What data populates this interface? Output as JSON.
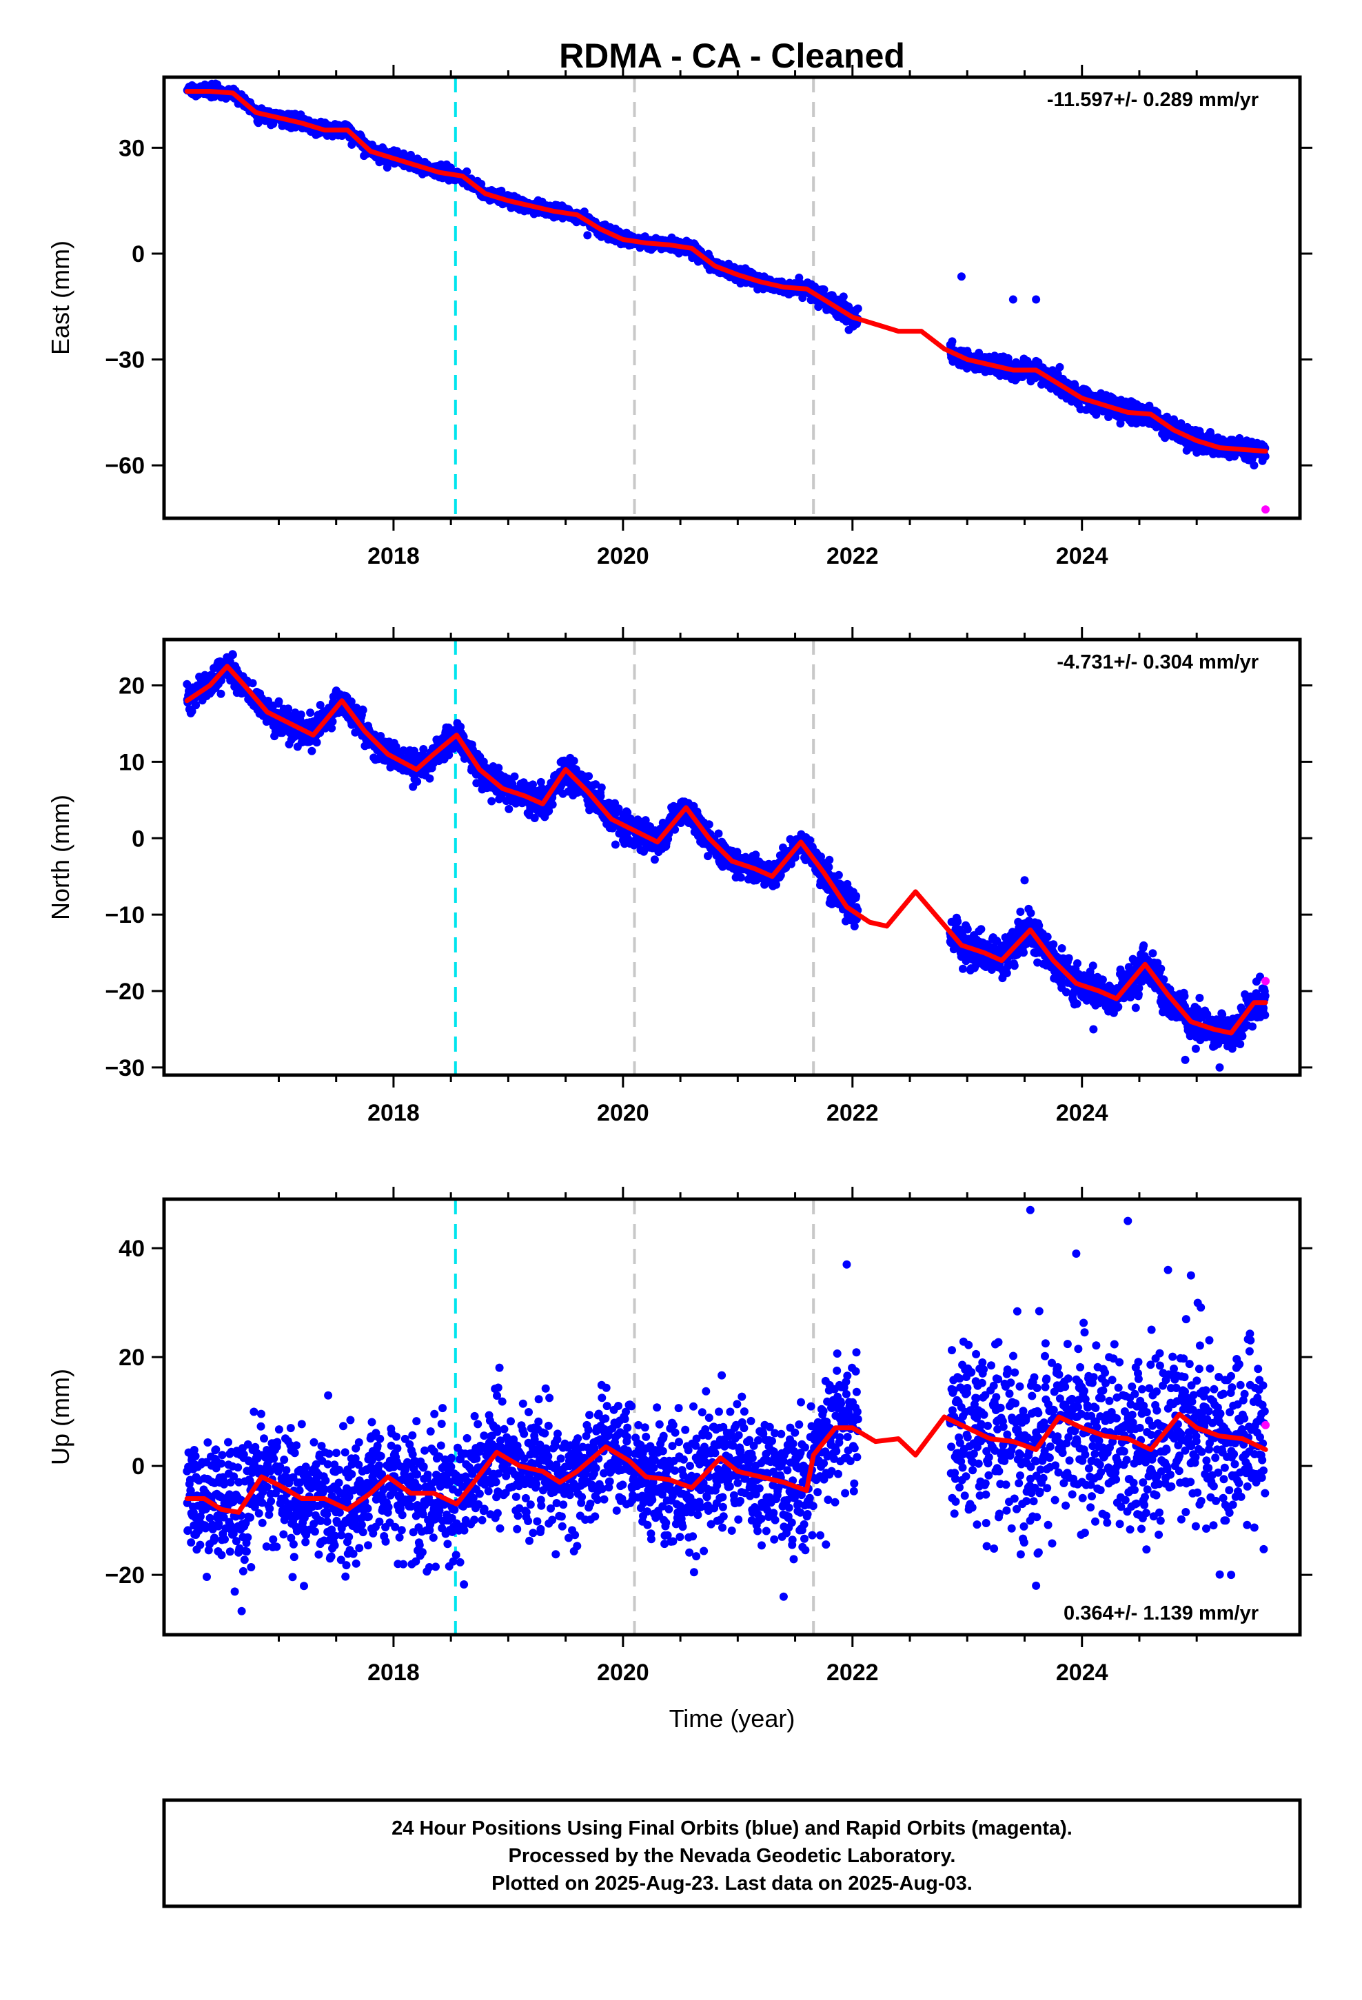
{
  "title": "RDMA  - CA - Cleaned",
  "xlabel": "Time (year)",
  "footer": [
    "24 Hour Positions Using Final Orbits (blue) and Rapid Orbits (magenta).",
    "Processed by the Nevada Geodetic Laboratory.",
    "Plotted on 2025-Aug-23. Last data on 2025-Aug-03."
  ],
  "colors": {
    "final": "#0000ff",
    "rapid": "#ff00ff",
    "model": "#ff0000",
    "antenna_change": "#00e5ee",
    "equipment_change": "#c8c8c8"
  },
  "chart_data": [
    {
      "type": "scatter",
      "ylabel": "East (mm)",
      "rate": "-11.597+/- 0.289 mm/yr",
      "rate_position": "top-right",
      "xlim": [
        2016.0,
        2025.9
      ],
      "ylim": [
        -75,
        50
      ],
      "xticks": [
        2018,
        2020,
        2022,
        2024
      ],
      "yticks": [
        30,
        0,
        -30,
        -60
      ],
      "vlines": [
        {
          "x": 2018.54,
          "style": "cyan"
        },
        {
          "x": 2020.1,
          "style": "gray"
        },
        {
          "x": 2021.66,
          "style": "gray"
        }
      ],
      "model_curve": [
        [
          2016.2,
          46
        ],
        [
          2016.4,
          46
        ],
        [
          2016.6,
          45.5
        ],
        [
          2016.8,
          40
        ],
        [
          2017.0,
          38.5
        ],
        [
          2017.2,
          37
        ],
        [
          2017.4,
          35
        ],
        [
          2017.6,
          35
        ],
        [
          2017.8,
          29
        ],
        [
          2018.0,
          27
        ],
        [
          2018.2,
          25
        ],
        [
          2018.4,
          23
        ],
        [
          2018.6,
          22
        ],
        [
          2018.8,
          17
        ],
        [
          2019.0,
          15
        ],
        [
          2019.2,
          13.5
        ],
        [
          2019.4,
          12
        ],
        [
          2019.6,
          11
        ],
        [
          2019.8,
          7
        ],
        [
          2020.0,
          4
        ],
        [
          2020.2,
          3
        ],
        [
          2020.4,
          2.5
        ],
        [
          2020.6,
          1.5
        ],
        [
          2020.8,
          -3.5
        ],
        [
          2021.0,
          -6
        ],
        [
          2021.2,
          -8
        ],
        [
          2021.4,
          -9.5
        ],
        [
          2021.6,
          -10
        ],
        [
          2021.8,
          -14
        ],
        [
          2022.0,
          -18
        ],
        [
          2022.2,
          -20
        ],
        [
          2022.4,
          -22
        ],
        [
          2022.6,
          -22
        ],
        [
          2022.8,
          -27
        ],
        [
          2023.0,
          -30
        ],
        [
          2023.2,
          -31.5
        ],
        [
          2023.4,
          -33
        ],
        [
          2023.6,
          -33
        ],
        [
          2023.8,
          -37
        ],
        [
          2024.0,
          -41
        ],
        [
          2024.2,
          -43
        ],
        [
          2024.4,
          -45
        ],
        [
          2024.6,
          -45.5
        ],
        [
          2024.8,
          -50
        ],
        [
          2025.0,
          -53
        ],
        [
          2025.2,
          -55
        ],
        [
          2025.4,
          -55.5
        ],
        [
          2025.6,
          -56
        ]
      ],
      "data_segments": [
        [
          2016.2,
          2018.6,
          0.9
        ],
        [
          2018.6,
          2021.7,
          0.9
        ],
        [
          2021.7,
          2022.05,
          1.6
        ],
        [
          2022.85,
          2025.6,
          1.4
        ]
      ],
      "outliers": [
        [
          2022.95,
          -6.5
        ],
        [
          2023.4,
          -13
        ],
        [
          2023.6,
          -13
        ],
        [
          2025.5,
          -60
        ]
      ],
      "rapid_points": [
        [
          2025.6,
          -72.5
        ]
      ]
    },
    {
      "type": "scatter",
      "ylabel": "North (mm)",
      "rate": "-4.731+/- 0.304 mm/yr",
      "rate_position": "top-right",
      "xlim": [
        2016.0,
        2025.9
      ],
      "ylim": [
        -31,
        26
      ],
      "xticks": [
        2018,
        2020,
        2022,
        2024
      ],
      "yticks": [
        20,
        10,
        0,
        -10,
        -20,
        -30
      ],
      "vlines": [
        {
          "x": 2018.54,
          "style": "cyan"
        },
        {
          "x": 2020.1,
          "style": "gray"
        },
        {
          "x": 2021.66,
          "style": "gray"
        }
      ],
      "model_curve": [
        [
          2016.2,
          18
        ],
        [
          2016.4,
          20
        ],
        [
          2016.55,
          22.5
        ],
        [
          2016.7,
          20
        ],
        [
          2016.9,
          16.5
        ],
        [
          2017.1,
          15
        ],
        [
          2017.3,
          13.5
        ],
        [
          2017.55,
          18
        ],
        [
          2017.75,
          14
        ],
        [
          2017.95,
          11
        ],
        [
          2018.2,
          9
        ],
        [
          2018.35,
          11
        ],
        [
          2018.55,
          13.5
        ],
        [
          2018.75,
          9
        ],
        [
          2018.95,
          6.5
        ],
        [
          2019.15,
          5.5
        ],
        [
          2019.3,
          4.5
        ],
        [
          2019.5,
          9
        ],
        [
          2019.7,
          6
        ],
        [
          2019.9,
          2.5
        ],
        [
          2020.1,
          1
        ],
        [
          2020.3,
          -0.5
        ],
        [
          2020.55,
          4
        ],
        [
          2020.75,
          0
        ],
        [
          2020.95,
          -3
        ],
        [
          2021.15,
          -4
        ],
        [
          2021.3,
          -5
        ],
        [
          2021.55,
          -0.5
        ],
        [
          2021.75,
          -4.5
        ],
        [
          2021.95,
          -9
        ],
        [
          2022.15,
          -11
        ],
        [
          2022.3,
          -11.5
        ],
        [
          2022.55,
          -7
        ],
        [
          2022.75,
          -10.5
        ],
        [
          2022.95,
          -14
        ],
        [
          2023.15,
          -15
        ],
        [
          2023.3,
          -16
        ],
        [
          2023.55,
          -12
        ],
        [
          2023.75,
          -16
        ],
        [
          2023.95,
          -19
        ],
        [
          2024.15,
          -20
        ],
        [
          2024.3,
          -21
        ],
        [
          2024.55,
          -16.5
        ],
        [
          2024.75,
          -20.5
        ],
        [
          2024.95,
          -24
        ],
        [
          2025.15,
          -25
        ],
        [
          2025.3,
          -25.5
        ],
        [
          2025.5,
          -21.5
        ],
        [
          2025.6,
          -21.5
        ]
      ],
      "data_segments": [
        [
          2016.2,
          2018.6,
          0.9
        ],
        [
          2018.6,
          2021.7,
          0.9
        ],
        [
          2021.7,
          2022.05,
          1.2
        ],
        [
          2022.85,
          2025.6,
          1.2
        ]
      ],
      "outliers": [
        [
          2023.5,
          -5.5
        ],
        [
          2024.1,
          -25
        ],
        [
          2024.9,
          -29
        ],
        [
          2025.2,
          -30
        ]
      ],
      "rapid_points": [
        [
          2025.6,
          -18.7
        ]
      ]
    },
    {
      "type": "scatter",
      "ylabel": "Up (mm)",
      "rate": "0.364+/- 1.139 mm/yr",
      "rate_position": "bottom-right",
      "xlim": [
        2016.0,
        2025.9
      ],
      "ylim": [
        -31,
        49
      ],
      "xticks": [
        2018,
        2020,
        2022,
        2024
      ],
      "yticks": [
        40,
        20,
        0,
        -20
      ],
      "vlines": [
        {
          "x": 2018.54,
          "style": "cyan"
        },
        {
          "x": 2020.1,
          "style": "gray"
        },
        {
          "x": 2021.66,
          "style": "gray"
        }
      ],
      "model_curve": [
        [
          2016.2,
          -6
        ],
        [
          2016.35,
          -6
        ],
        [
          2016.5,
          -8
        ],
        [
          2016.65,
          -8.5
        ],
        [
          2016.85,
          -2
        ],
        [
          2017.0,
          -3.5
        ],
        [
          2017.2,
          -6
        ],
        [
          2017.4,
          -6
        ],
        [
          2017.6,
          -8
        ],
        [
          2017.8,
          -5
        ],
        [
          2017.95,
          -2
        ],
        [
          2018.15,
          -5
        ],
        [
          2018.35,
          -5
        ],
        [
          2018.55,
          -7
        ],
        [
          2018.7,
          -3
        ],
        [
          2018.9,
          2.5
        ],
        [
          2019.1,
          0
        ],
        [
          2019.3,
          -1
        ],
        [
          2019.45,
          -3
        ],
        [
          2019.6,
          -1
        ],
        [
          2019.85,
          3.5
        ],
        [
          2020.05,
          1
        ],
        [
          2020.2,
          -2
        ],
        [
          2020.4,
          -2.5
        ],
        [
          2020.6,
          -4
        ],
        [
          2020.85,
          1.5
        ],
        [
          2021.0,
          -1
        ],
        [
          2021.2,
          -2
        ],
        [
          2021.4,
          -3
        ],
        [
          2021.6,
          -4.5
        ],
        [
          2021.66,
          2
        ],
        [
          2021.85,
          7
        ],
        [
          2022.0,
          7
        ],
        [
          2022.2,
          4.5
        ],
        [
          2022.4,
          5
        ],
        [
          2022.55,
          2
        ],
        [
          2022.8,
          9
        ],
        [
          2023.0,
          7
        ],
        [
          2023.2,
          5
        ],
        [
          2023.4,
          4.5
        ],
        [
          2023.6,
          3
        ],
        [
          2023.8,
          9
        ],
        [
          2024.0,
          7
        ],
        [
          2024.2,
          5.5
        ],
        [
          2024.4,
          5
        ],
        [
          2024.6,
          3
        ],
        [
          2024.85,
          9.5
        ],
        [
          2025.0,
          7
        ],
        [
          2025.2,
          5.5
        ],
        [
          2025.4,
          5
        ],
        [
          2025.6,
          3
        ]
      ],
      "data_segments": [
        [
          2016.2,
          2018.6,
          5.5
        ],
        [
          2018.6,
          2021.7,
          5.5
        ],
        [
          2021.7,
          2022.05,
          6
        ],
        [
          2022.85,
          2025.6,
          8
        ]
      ],
      "outliers": [
        [
          2023.55,
          47
        ],
        [
          2024.4,
          45
        ],
        [
          2024.75,
          36
        ],
        [
          2023.95,
          39
        ],
        [
          2021.95,
          37
        ],
        [
          2024.95,
          35
        ],
        [
          2023.6,
          -22
        ],
        [
          2021.4,
          -24
        ],
        [
          2025.3,
          -20
        ]
      ],
      "rapid_points": [
        [
          2025.6,
          7.5
        ]
      ]
    }
  ]
}
